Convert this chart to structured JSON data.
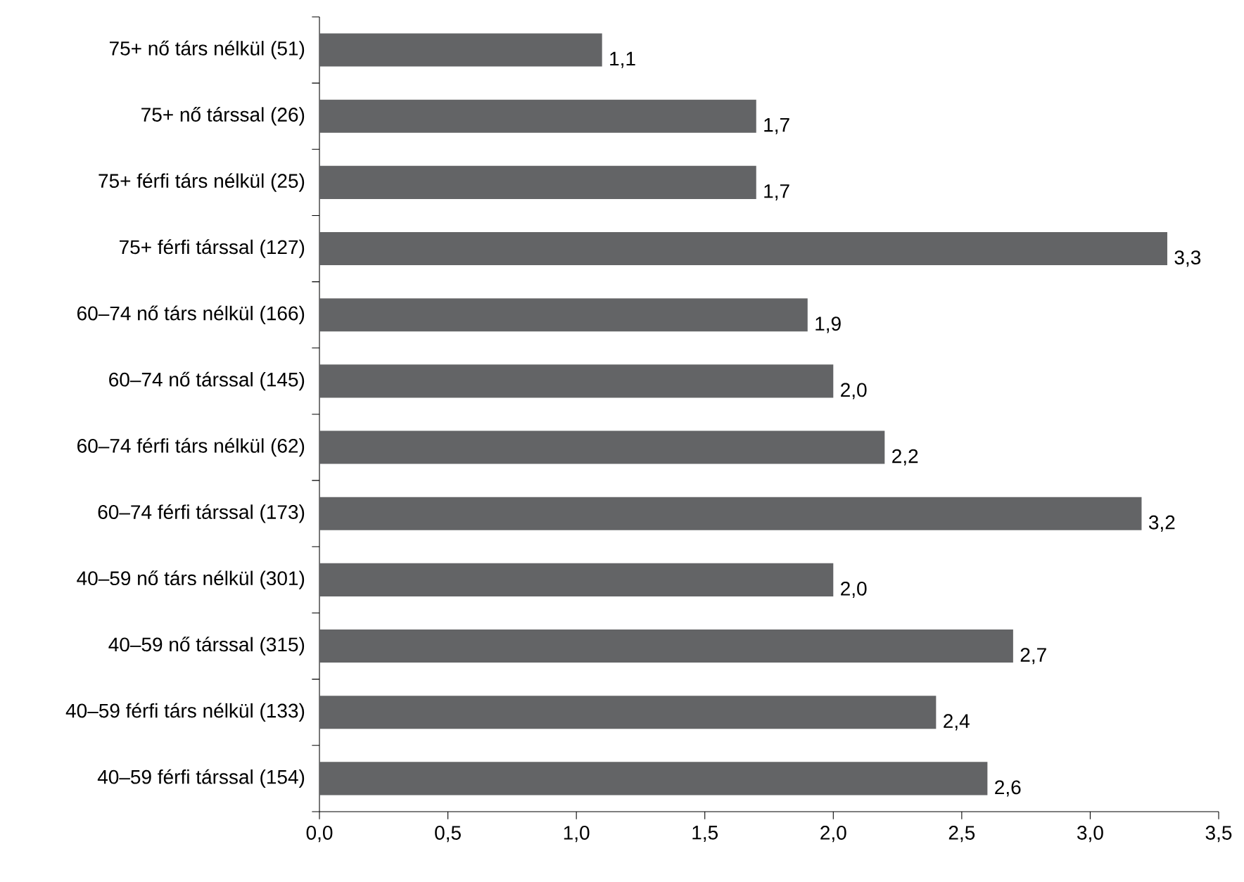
{
  "chart_data": {
    "type": "bar",
    "orientation": "horizontal",
    "categories": [
      "75+ nő társ nélkül (51)",
      "75+ nő társsal (26)",
      "75+ férfi társ nélkül (25)",
      "75+ férfi társsal (127)",
      "60–74 nő társ nélkül (166)",
      "60–74 nő társsal (145)",
      "60–74 férfi társ nélkül (62)",
      "60–74 férfi társsal (173)",
      "40–59 nő társ nélkül (301)",
      "40–59 nő társsal (315)",
      "40–59 férfi társ nélkül (133)",
      "40–59 férfi társsal (154)"
    ],
    "values": [
      1.1,
      1.7,
      1.7,
      3.3,
      1.9,
      2.0,
      2.2,
      3.2,
      2.0,
      2.7,
      2.4,
      2.6
    ],
    "value_labels": [
      "1,1",
      "1,7",
      "1,7",
      "3,3",
      "1,9",
      "2,0",
      "2,2",
      "3,2",
      "2,0",
      "2,7",
      "2,4",
      "2,6"
    ],
    "color": "#636466",
    "xlim": [
      0,
      3.5
    ],
    "xticks": [
      {
        "value": 0,
        "label": "0,0"
      },
      {
        "value": 0.5,
        "label": "0,5"
      },
      {
        "value": 1,
        "label": "1,0"
      },
      {
        "value": 1.5,
        "label": "1,5"
      },
      {
        "value": 2,
        "label": "2,0"
      },
      {
        "value": 2.5,
        "label": "2,5"
      },
      {
        "value": 3,
        "label": "3,0"
      },
      {
        "value": 3.5,
        "label": "3,5"
      }
    ],
    "grid": false
  }
}
